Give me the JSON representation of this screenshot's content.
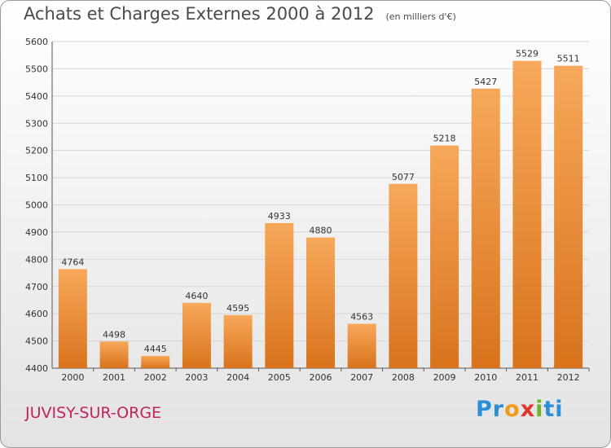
{
  "title": "Achats et Charges Externes 2000 à 2012",
  "unit_note": "(en milliers d'€)",
  "city": "JUVISY-SUR-ORGE",
  "logo_text": "Proxiti",
  "colors": {
    "bar_light": "#f7a85a",
    "bar_dark": "#d9731c",
    "city": "#c0245c",
    "grid": "#d6d6d6"
  },
  "chart_data": {
    "type": "bar",
    "categories": [
      "2000",
      "2001",
      "2002",
      "2003",
      "2004",
      "2005",
      "2006",
      "2007",
      "2008",
      "2009",
      "2010",
      "2011",
      "2012"
    ],
    "values": [
      4764,
      4498,
      4445,
      4640,
      4595,
      4933,
      4880,
      4563,
      5077,
      5218,
      5427,
      5529,
      5511
    ],
    "ylim": [
      4400,
      5600
    ],
    "yticks": [
      4400,
      4500,
      4600,
      4700,
      4800,
      4900,
      5000,
      5100,
      5200,
      5300,
      5400,
      5500,
      5600
    ],
    "grid": true
  }
}
